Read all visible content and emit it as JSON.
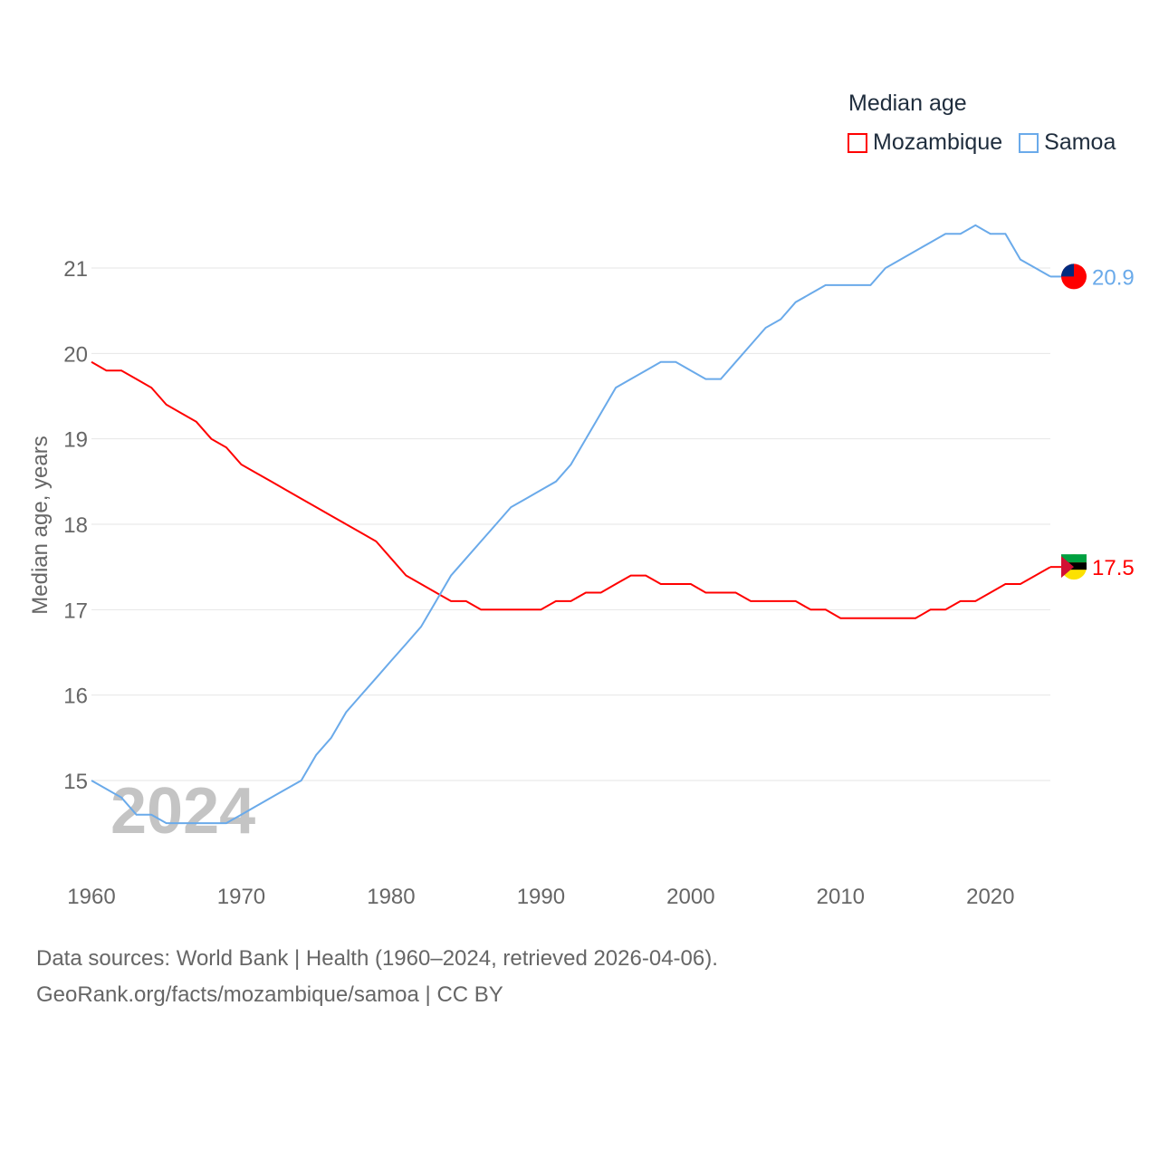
{
  "chart_data": {
    "type": "line",
    "title": "Median age",
    "ylabel": "Median age, years",
    "xlabel": "",
    "xlim": [
      1960,
      2024
    ],
    "ylim": [
      14.1,
      21.7
    ],
    "x_ticks": [
      1960,
      1970,
      1980,
      1990,
      2000,
      2010,
      2020
    ],
    "y_ticks": [
      15,
      16,
      17,
      18,
      19,
      20,
      21
    ],
    "grid": true,
    "legend_placement": "top-right",
    "watermark_year": "2024",
    "x": [
      1960,
      1961,
      1962,
      1963,
      1964,
      1965,
      1966,
      1967,
      1968,
      1969,
      1970,
      1971,
      1972,
      1973,
      1974,
      1975,
      1976,
      1977,
      1978,
      1979,
      1980,
      1981,
      1982,
      1983,
      1984,
      1985,
      1986,
      1987,
      1988,
      1989,
      1990,
      1991,
      1992,
      1993,
      1994,
      1995,
      1996,
      1997,
      1998,
      1999,
      2000,
      2001,
      2002,
      2003,
      2004,
      2005,
      2006,
      2007,
      2008,
      2009,
      2010,
      2011,
      2012,
      2013,
      2014,
      2015,
      2016,
      2017,
      2018,
      2019,
      2020,
      2021,
      2022,
      2023,
      2024
    ],
    "series": [
      {
        "name": "Mozambique",
        "color": "#ff0000",
        "end_label": "17.5",
        "values": [
          19.9,
          19.8,
          19.8,
          19.7,
          19.6,
          19.4,
          19.3,
          19.2,
          19.0,
          18.9,
          18.7,
          18.6,
          18.5,
          18.4,
          18.3,
          18.2,
          18.1,
          18.0,
          17.9,
          17.8,
          17.6,
          17.4,
          17.3,
          17.2,
          17.1,
          17.1,
          17.0,
          17.0,
          17.0,
          17.0,
          17.0,
          17.1,
          17.1,
          17.2,
          17.2,
          17.3,
          17.4,
          17.4,
          17.3,
          17.3,
          17.3,
          17.2,
          17.2,
          17.2,
          17.1,
          17.1,
          17.1,
          17.1,
          17.0,
          17.0,
          16.9,
          16.9,
          16.9,
          16.9,
          16.9,
          16.9,
          17.0,
          17.0,
          17.1,
          17.1,
          17.2,
          17.3,
          17.3,
          17.4,
          17.5
        ]
      },
      {
        "name": "Samoa",
        "color": "#6aaaea",
        "end_label": "20.9",
        "values": [
          15.0,
          14.9,
          14.8,
          14.6,
          14.6,
          14.5,
          14.5,
          14.5,
          14.5,
          14.5,
          14.6,
          14.7,
          14.8,
          14.9,
          15.0,
          15.3,
          15.5,
          15.8,
          16.0,
          16.2,
          16.4,
          16.6,
          16.8,
          17.1,
          17.4,
          17.6,
          17.8,
          18.0,
          18.2,
          18.3,
          18.4,
          18.5,
          18.7,
          19.0,
          19.3,
          19.6,
          19.7,
          19.8,
          19.9,
          19.9,
          19.8,
          19.7,
          19.7,
          19.9,
          20.1,
          20.3,
          20.4,
          20.6,
          20.7,
          20.8,
          20.8,
          20.8,
          20.8,
          21.0,
          21.1,
          21.2,
          21.3,
          21.4,
          21.4,
          21.5,
          21.4,
          21.4,
          21.1,
          21.0,
          20.9
        ]
      }
    ]
  },
  "footer": {
    "line1": "Data sources: World Bank | Health (1960–2024, retrieved 2026-04-06).",
    "line2": "GeoRank.org/facts/mozambique/samoa | CC BY"
  }
}
